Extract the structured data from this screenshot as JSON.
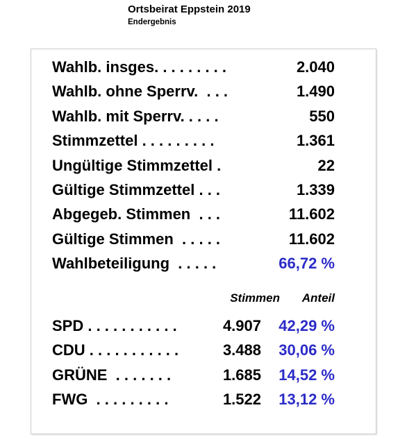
{
  "header": {
    "title": "Ortsbeirat Eppstein 2019",
    "subtitle": "Endergebnis"
  },
  "summary": {
    "rows": [
      [
        "Wahlb. insges. . . . . . . . .",
        "2.040"
      ],
      [
        "Wahlb. ohne Sperrv.  . . .",
        "1.490"
      ],
      [
        "Wahlb. mit Sperrv. . . . .",
        "550"
      ],
      [
        "Stimmzettel . . . . . . . . .",
        "1.361"
      ],
      [
        "Ungültige Stimmzettel .",
        "22"
      ],
      [
        "Gültige Stimmzettel . . .",
        "1.339"
      ],
      [
        "Abgegeb. Stimmen  . . .",
        "11.602"
      ],
      [
        "Gültige Stimmen  . . . . .",
        "11.602"
      ],
      [
        "Wahlbeteiligung  . . . . .",
        "66,72 %"
      ]
    ]
  },
  "results": {
    "columns": [
      "Stimmen",
      "Anteil"
    ],
    "rows": [
      [
        "SPD . . . . . . . . . . .",
        "4.907",
        "42,29 %"
      ],
      [
        "CDU . . . . . . . . . . .",
        "3.488",
        "30,06 %"
      ],
      [
        "GRÜNE  . . . . . . .",
        "1.685",
        "14,52 %"
      ],
      [
        "FWG  . . . . . . . . .",
        "1.522",
        "13,12 %"
      ]
    ]
  }
}
